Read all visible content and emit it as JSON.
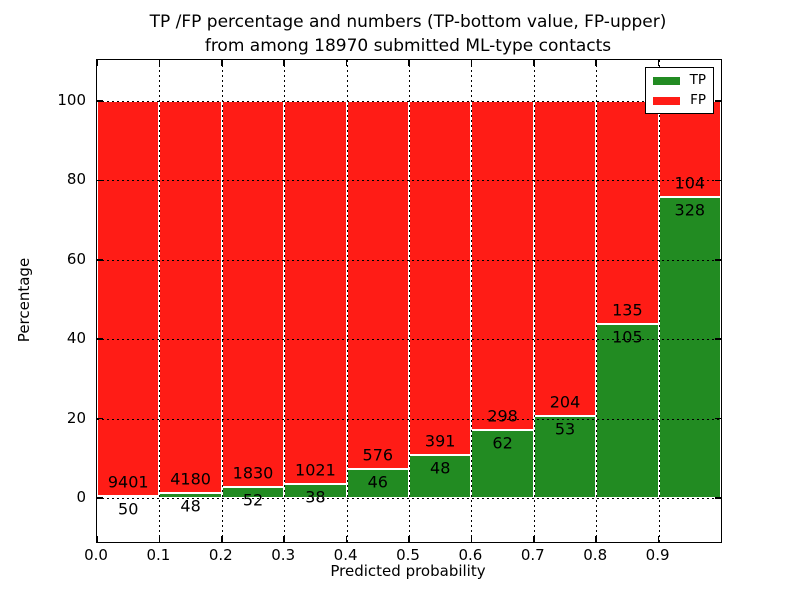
{
  "chart_data": {
    "type": "bar",
    "stacked": true,
    "normalized": "each bar scaled to 100 percent; text labels show raw counts",
    "title_lines": [
      "TP /FP percentage and numbers (TP-bottom value, FP-upper)",
      "from among 18970 submitted ML-type contacts"
    ],
    "xlabel": "Predicted probability",
    "ylabel": "Percentage",
    "total_contacts": 18970,
    "bin_width": 0.1,
    "bin_starts": [
      0.0,
      0.1,
      0.2,
      0.3,
      0.4,
      0.5,
      0.6,
      0.7,
      0.8,
      0.9
    ],
    "x_tick_labels": [
      "0.0",
      "0.1",
      "0.2",
      "0.3",
      "0.4",
      "0.5",
      "0.6",
      "0.7",
      "0.8",
      "0.9"
    ],
    "y_tick_values": [
      0,
      20,
      40,
      60,
      80,
      100
    ],
    "y_tick_labels": [
      "0",
      "20",
      "40",
      "60",
      "80",
      "100"
    ],
    "xlim": [
      0.0,
      1.0
    ],
    "ylim": [
      -11,
      110
    ],
    "grid": {
      "linestyle": "dotted",
      "color": "#000000",
      "drawn_over_bars": true
    },
    "series": [
      {
        "name": "TP",
        "color": "#228b22",
        "counts": [
          50,
          48,
          52,
          38,
          46,
          48,
          62,
          53,
          105,
          328
        ]
      },
      {
        "name": "FP",
        "color": "#ff1c16",
        "counts": [
          9401,
          4180,
          1830,
          1021,
          576,
          391,
          298,
          204,
          135,
          104
        ]
      }
    ],
    "tp_percent_by_bin": [
      0.53,
      1.14,
      2.76,
      3.59,
      7.4,
      10.93,
      17.22,
      20.62,
      43.75,
      75.93
    ],
    "legend": {
      "position": "upper right",
      "entries": [
        "TP",
        "FP"
      ]
    },
    "bar_edge_color": "#ffffff",
    "frame_color": "#000000",
    "background_color": "#ffffff"
  }
}
